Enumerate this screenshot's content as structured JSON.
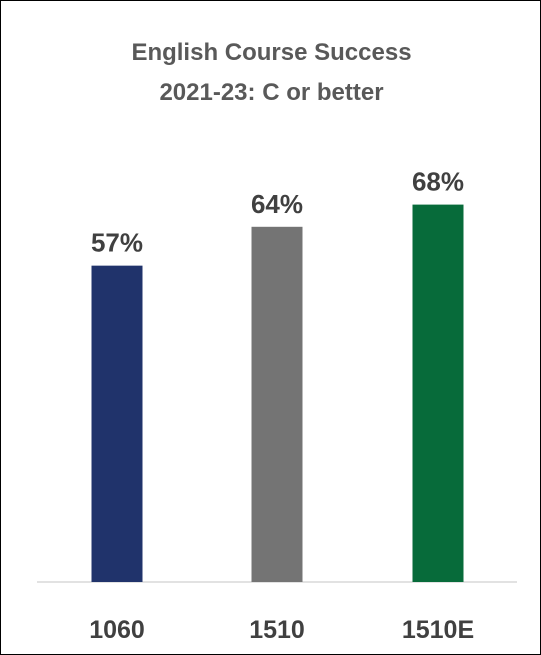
{
  "chart_data": {
    "type": "bar",
    "title_line1": "English Course Success",
    "title_line2": "2021-23: C or better",
    "categories": [
      "1060",
      "1510",
      "1510E"
    ],
    "values": [
      57,
      64,
      68
    ],
    "data_labels": [
      "57%",
      "64%",
      "68%"
    ],
    "colors": [
      "#20336b",
      "#747474",
      "#076b3a"
    ],
    "ylim": [
      0,
      100
    ],
    "grid": false,
    "legend": "none"
  }
}
